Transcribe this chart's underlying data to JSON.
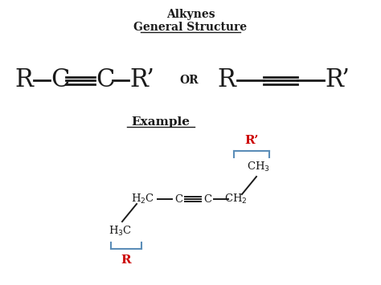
{
  "title1": "Alkynes",
  "title2": "General Structure",
  "example_label": "Example",
  "or_text": "OR",
  "bg_color": "#ffffff",
  "text_color": "#1a1a1a",
  "red_color": "#cc0000",
  "blue_color": "#5b8db8",
  "figsize": [
    4.74,
    3.55
  ],
  "dpi": 100
}
